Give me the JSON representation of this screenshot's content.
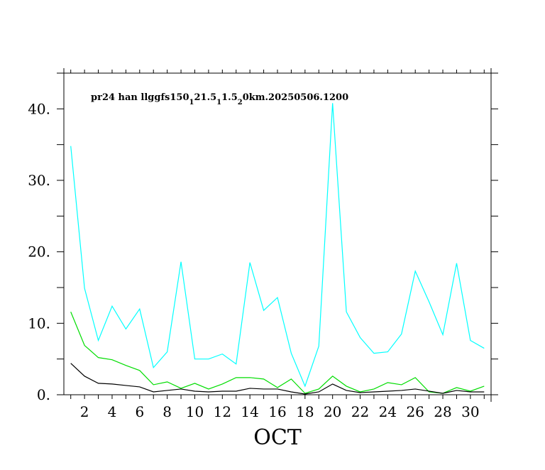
{
  "chart_data": {
    "type": "line",
    "title_parts": [
      {
        "text": "pr24 han llggfs150",
        "sub": false
      },
      {
        "text": "1",
        "sub": true
      },
      {
        "text": "21.5",
        "sub": false
      },
      {
        "text": "1",
        "sub": true
      },
      {
        "text": "1.5",
        "sub": false
      },
      {
        "text": "2",
        "sub": true
      },
      {
        "text": "0km.20250506.1200",
        "sub": false
      }
    ],
    "xlabel": "OCT",
    "ylabel": "",
    "xlim": [
      0.5,
      31.5
    ],
    "ylim": [
      0,
      45
    ],
    "x_ticks": [
      2,
      4,
      6,
      8,
      10,
      12,
      14,
      16,
      18,
      20,
      22,
      24,
      26,
      28,
      30
    ],
    "x_tick_labels": [
      "2",
      "4",
      "6",
      "8",
      "10",
      "12",
      "14",
      "16",
      "18",
      "20",
      "22",
      "24",
      "26",
      "28",
      "30"
    ],
    "y_ticks": [
      0,
      10,
      20,
      30,
      40
    ],
    "y_tick_labels": [
      "0.",
      "10.",
      "20.",
      "30.",
      "40."
    ],
    "grid": false,
    "x": [
      1,
      2,
      3,
      4,
      5,
      6,
      7,
      8,
      9,
      10,
      11,
      12,
      13,
      14,
      15,
      16,
      17,
      18,
      19,
      20,
      21,
      22,
      23,
      24,
      25,
      26,
      27,
      28,
      29,
      30,
      31
    ],
    "series": [
      {
        "color": "#00ffff",
        "values": [
          34.8,
          14.9,
          7.6,
          12.4,
          9.2,
          12.0,
          3.8,
          6.0,
          18.6,
          5.0,
          5.0,
          5.7,
          4.3,
          18.5,
          11.8,
          13.6,
          5.8,
          1.2,
          6.8,
          40.8,
          11.6,
          8.0,
          5.8,
          6.0,
          8.5,
          17.3,
          13.0,
          8.4,
          18.4,
          7.6,
          6.5
        ]
      },
      {
        "color": "#00dd00",
        "values": [
          11.6,
          6.9,
          5.2,
          4.9,
          4.1,
          3.4,
          1.4,
          1.8,
          0.9,
          1.6,
          0.8,
          1.5,
          2.4,
          2.4,
          2.2,
          1.0,
          2.2,
          0.2,
          0.8,
          2.6,
          1.2,
          0.4,
          0.8,
          1.7,
          1.4,
          2.4,
          0.4,
          0.2,
          1.0,
          0.5,
          1.2
        ]
      },
      {
        "color": "#000000",
        "values": [
          4.4,
          2.6,
          1.6,
          1.5,
          1.3,
          1.1,
          0.4,
          0.6,
          0.8,
          0.5,
          0.4,
          0.5,
          0.5,
          0.9,
          0.8,
          0.8,
          0.4,
          0.1,
          0.4,
          1.5,
          0.6,
          0.3,
          0.4,
          0.5,
          0.6,
          0.8,
          0.5,
          0.2,
          0.6,
          0.4,
          0.4
        ]
      }
    ]
  }
}
